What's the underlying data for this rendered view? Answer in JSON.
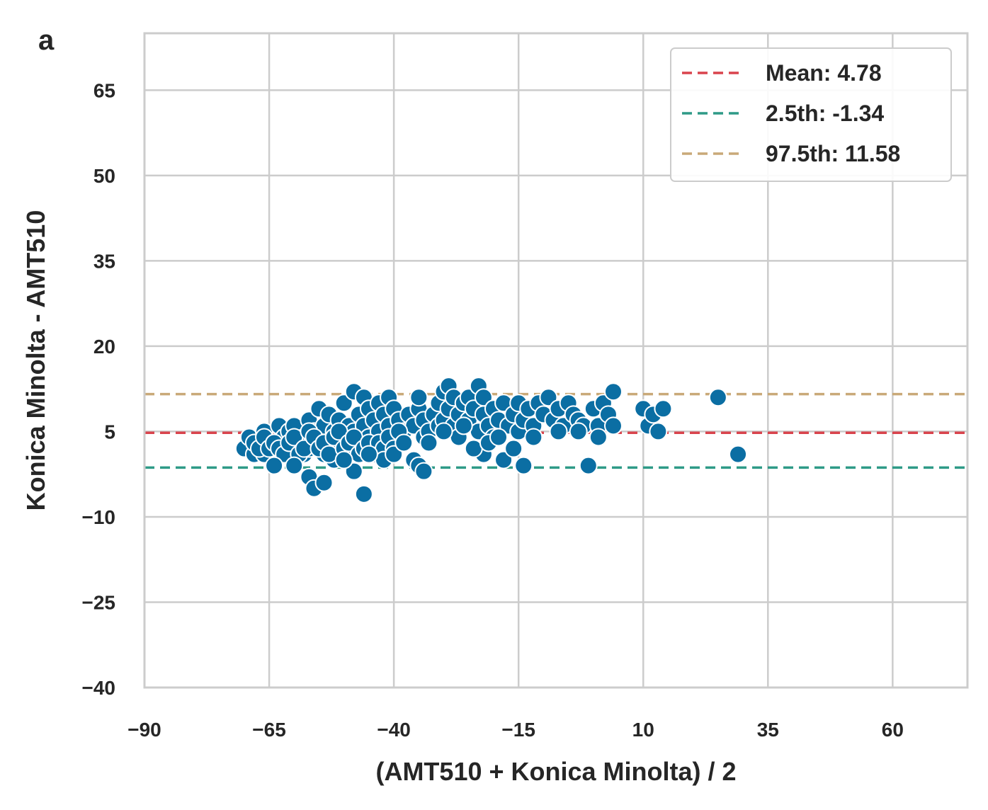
{
  "panel_label": "a",
  "chart_data": {
    "type": "scatter",
    "title": "",
    "xlabel": "(AMT510 + Konica Minolta) / 2",
    "ylabel": "Konica Minolta - AMT510",
    "xlim": [
      -90,
      75
    ],
    "ylim": [
      -40,
      75
    ],
    "xticks": [
      -90,
      -65,
      -40,
      -15,
      10,
      35,
      60
    ],
    "yticks": [
      -40,
      -25,
      -10,
      5,
      20,
      35,
      50,
      65
    ],
    "xtick_labels": [
      "−90",
      "−65",
      "−40",
      "−15",
      "10",
      "35",
      "60"
    ],
    "ytick_labels": [
      "−40",
      "−25",
      "−10",
      "5",
      "20",
      "35",
      "50",
      "65"
    ],
    "grid": true,
    "legend_position": "top-right",
    "reference_lines": [
      {
        "name": "mean",
        "label": "Mean: 4.78",
        "value": 4.78,
        "color": "#d9444d",
        "style": "dashed"
      },
      {
        "name": "p2_5",
        "label": "2.5th: -1.34",
        "value": -1.34,
        "color": "#2e9a87",
        "style": "dashed"
      },
      {
        "name": "p97_5",
        "label": "97.5th: 11.58",
        "value": 11.58,
        "color": "#c9a978",
        "style": "dashed"
      }
    ],
    "point_color": "#0b6ea3",
    "points": [
      [
        -70,
        2
      ],
      [
        -69,
        4
      ],
      [
        -68,
        1
      ],
      [
        -67,
        3
      ],
      [
        -66,
        5
      ],
      [
        -66,
        1
      ],
      [
        -65,
        3
      ],
      [
        -64,
        2
      ],
      [
        -63,
        6
      ],
      [
        -63,
        3
      ],
      [
        -62,
        4
      ],
      [
        -62,
        1
      ],
      [
        -61,
        5
      ],
      [
        -60,
        2
      ],
      [
        -60,
        6
      ],
      [
        -59,
        3
      ],
      [
        -58,
        4
      ],
      [
        -58,
        1
      ],
      [
        -57,
        7
      ],
      [
        -57,
        2
      ],
      [
        -56,
        5
      ],
      [
        -56,
        3
      ],
      [
        -55,
        9
      ],
      [
        -55,
        4
      ],
      [
        -54,
        6
      ],
      [
        -54,
        1
      ],
      [
        -53,
        8
      ],
      [
        -53,
        3
      ],
      [
        -52,
        5
      ],
      [
        -52,
        0
      ],
      [
        -51,
        7
      ],
      [
        -51,
        2
      ],
      [
        -50,
        10
      ],
      [
        -50,
        4
      ],
      [
        -49,
        6
      ],
      [
        -49,
        1
      ],
      [
        -48,
        12
      ],
      [
        -48,
        5
      ],
      [
        -47,
        8
      ],
      [
        -47,
        3
      ],
      [
        -46,
        11
      ],
      [
        -46,
        6
      ],
      [
        -45,
        4
      ],
      [
        -45,
        9
      ],
      [
        -44,
        7
      ],
      [
        -44,
        2
      ],
      [
        -43,
        10
      ],
      [
        -43,
        5
      ],
      [
        -42,
        8
      ],
      [
        -42,
        3
      ],
      [
        -41,
        11
      ],
      [
        -41,
        6
      ],
      [
        -40,
        9
      ],
      [
        -40,
        4
      ],
      [
        -39,
        7
      ],
      [
        -38,
        5
      ],
      [
        -37,
        8
      ],
      [
        -36,
        6
      ],
      [
        -35,
        9
      ],
      [
        -35,
        11
      ],
      [
        -34,
        7
      ],
      [
        -34,
        4
      ],
      [
        -33,
        5
      ],
      [
        -32,
        8
      ],
      [
        -31,
        10
      ],
      [
        -31,
        6
      ],
      [
        -30,
        12
      ],
      [
        -30,
        7
      ],
      [
        -29,
        13
      ],
      [
        -29,
        9
      ],
      [
        -28,
        6
      ],
      [
        -28,
        11
      ],
      [
        -27,
        8
      ],
      [
        -27,
        4
      ],
      [
        -26,
        10
      ],
      [
        -25,
        7
      ],
      [
        -25,
        11
      ],
      [
        -24,
        9
      ],
      [
        -23,
        5
      ],
      [
        -23,
        13
      ],
      [
        -22,
        8
      ],
      [
        -22,
        11
      ],
      [
        -21,
        6
      ],
      [
        -20,
        9
      ],
      [
        -20,
        4
      ],
      [
        -19,
        7
      ],
      [
        -18,
        10
      ],
      [
        -17,
        6
      ],
      [
        -16,
        8
      ],
      [
        -15,
        5
      ],
      [
        -15,
        10
      ],
      [
        -14,
        7
      ],
      [
        -13,
        9
      ],
      [
        -12,
        6
      ],
      [
        -11,
        10
      ],
      [
        -10,
        8
      ],
      [
        -9,
        11
      ],
      [
        -8,
        7
      ],
      [
        -7,
        9
      ],
      [
        -6,
        6
      ],
      [
        -5,
        10
      ],
      [
        -4,
        8
      ],
      [
        -3,
        7
      ],
      [
        -2,
        6
      ],
      [
        0,
        9
      ],
      [
        1,
        6
      ],
      [
        2,
        10
      ],
      [
        3,
        8
      ],
      [
        4,
        12
      ],
      [
        4,
        6
      ],
      [
        10,
        9
      ],
      [
        11,
        6
      ],
      [
        12,
        8
      ],
      [
        13,
        5
      ],
      [
        14,
        9
      ],
      [
        -68,
        3
      ],
      [
        -67,
        2
      ],
      [
        -66,
        4
      ],
      [
        -65,
        2
      ],
      [
        -64,
        3
      ],
      [
        -63,
        2
      ],
      [
        -62,
        1
      ],
      [
        -61,
        3
      ],
      [
        -60,
        4
      ],
      [
        -59,
        1
      ],
      [
        -58,
        2
      ],
      [
        -57,
        5
      ],
      [
        -56,
        4
      ],
      [
        -55,
        2
      ],
      [
        -54,
        3
      ],
      [
        -53,
        1
      ],
      [
        -52,
        4
      ],
      [
        -51,
        5
      ],
      [
        -50,
        2
      ],
      [
        -49,
        3
      ],
      [
        -48,
        4
      ],
      [
        -47,
        1
      ],
      [
        -46,
        2
      ],
      [
        -45,
        3
      ],
      [
        -44,
        1
      ],
      [
        -43,
        3
      ],
      [
        -42,
        2
      ],
      [
        -41,
        4
      ],
      [
        -40,
        2
      ],
      [
        -39,
        5
      ],
      [
        -60,
        -1
      ],
      [
        -57,
        -3
      ],
      [
        -56,
        -5
      ],
      [
        -54,
        -4
      ],
      [
        -48,
        -2
      ],
      [
        -46,
        -6
      ],
      [
        -42,
        0
      ],
      [
        -36,
        0
      ],
      [
        -35,
        -1
      ],
      [
        -34,
        -2
      ],
      [
        -22,
        1
      ],
      [
        -18,
        0
      ],
      [
        -14,
        -1
      ],
      [
        -1,
        -1
      ],
      [
        -64,
        -1
      ],
      [
        -50,
        0
      ],
      [
        -45,
        1
      ],
      [
        -40,
        1
      ],
      [
        -33,
        3
      ],
      [
        -38,
        3
      ],
      [
        -30,
        5
      ],
      [
        -26,
        6
      ],
      [
        -24,
        2
      ],
      [
        -21,
        3
      ],
      [
        -19,
        4
      ],
      [
        -16,
        2
      ],
      [
        -12,
        4
      ],
      [
        -7,
        5
      ],
      [
        -3,
        5
      ],
      [
        1,
        4
      ],
      [
        25,
        11
      ],
      [
        29,
        1
      ]
    ]
  }
}
